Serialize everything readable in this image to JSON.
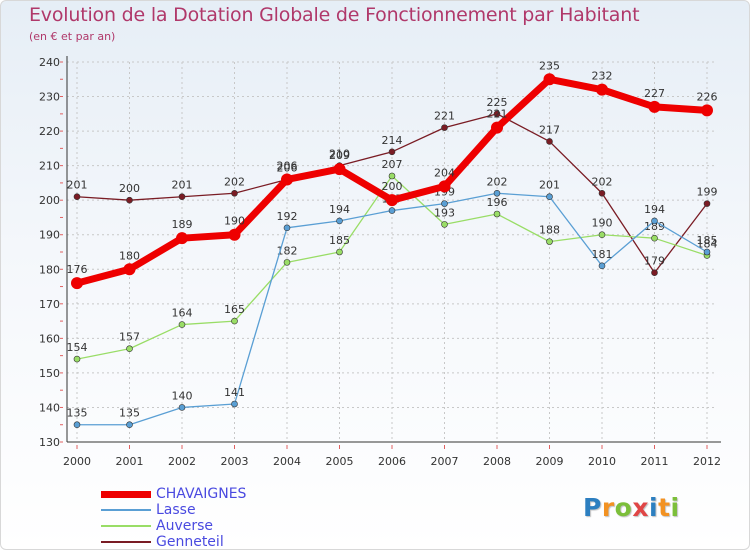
{
  "chart_data": {
    "type": "line",
    "title": "Evolution de la Dotation Globale de Fonctionnement par Habitant",
    "subtitle": "(en € et par an)",
    "xlabel": "",
    "ylabel": "",
    "ylim": [
      130,
      240
    ],
    "yticks": [
      130,
      140,
      150,
      160,
      170,
      180,
      190,
      200,
      210,
      220,
      230,
      240
    ],
    "categories": [
      "2000",
      "2001",
      "2002",
      "2003",
      "2004",
      "2005",
      "2006",
      "2007",
      "2008",
      "2009",
      "2010",
      "2011",
      "2012"
    ],
    "grid": true,
    "legend_position": "bottom-left",
    "series": [
      {
        "name": "Genneteil",
        "color": "#7a1c24",
        "values": [
          201,
          200,
          201,
          202,
          206,
          210,
          214,
          221,
          225,
          217,
          202,
          179,
          199
        ]
      },
      {
        "name": "Auverse",
        "color": "#99dd66",
        "values": [
          154,
          157,
          164,
          165,
          182,
          185,
          207,
          193,
          196,
          188,
          190,
          189,
          184
        ]
      },
      {
        "name": "Lasse",
        "color": "#5a9fd4",
        "values": [
          135,
          135,
          140,
          141,
          192,
          194,
          197,
          199,
          202,
          201,
          181,
          194,
          185
        ]
      },
      {
        "name": "CHAVAIGNES",
        "color": "#ee0000",
        "values": [
          176,
          180,
          189,
          190,
          206,
          209,
          200,
          204,
          221,
          235,
          232,
          227,
          226
        ]
      }
    ]
  },
  "legend": {
    "items": [
      {
        "name": "CHAVAIGNES",
        "color": "#ee0000"
      },
      {
        "name": "Lasse",
        "color": "#5a9fd4"
      },
      {
        "name": "Auverse",
        "color": "#99dd66"
      },
      {
        "name": "Genneteil",
        "color": "#7a1c24"
      }
    ]
  },
  "logo": {
    "letters": [
      "P",
      "r",
      "o",
      "x",
      "i",
      "t",
      "i"
    ],
    "colors": [
      "#2c7fc0",
      "#f29222",
      "#7cbf3a",
      "#e04646",
      "#2c7fc0",
      "#f29222",
      "#7cbf3a"
    ]
  }
}
